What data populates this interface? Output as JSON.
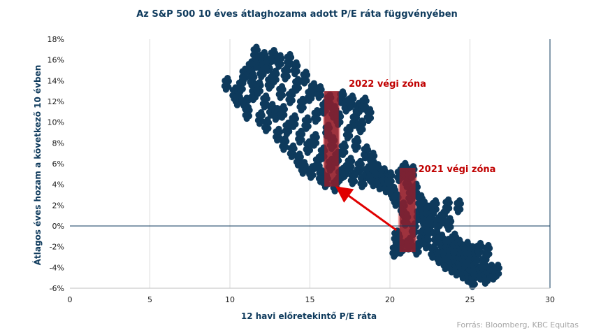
{
  "chart_data": {
    "type": "scatter",
    "title": "Az S&P 500 10 éves átlaghozama adott P/E ráta függvényében",
    "xlabel": "12 havi előretekintő P/E ráta",
    "ylabel": "Átlagos éves hozam a következő 10 évben",
    "xlim": [
      0,
      30
    ],
    "ylim": [
      -6,
      18
    ],
    "x_ticks": [
      0,
      5,
      10,
      15,
      20,
      25,
      30
    ],
    "x_tick_labels": [
      "0",
      "5",
      "10",
      "15",
      "20",
      "25",
      "30"
    ],
    "y_ticks": [
      -6,
      -4,
      -2,
      0,
      2,
      4,
      6,
      8,
      10,
      12,
      14,
      16,
      18
    ],
    "y_tick_labels": [
      "-6%",
      "-4%",
      "-2%",
      "0%",
      "2%",
      "4%",
      "6%",
      "8%",
      "10%",
      "12%",
      "14%",
      "16%",
      "18%"
    ],
    "grid": {
      "vertical": true,
      "horizontal": false
    },
    "point_color": "#0e3a5c",
    "series": [
      {
        "points": [
          [
            9.8,
            13.7
          ],
          [
            10.3,
            12.8
          ],
          [
            10.5,
            12.2
          ],
          [
            10.7,
            13.5
          ],
          [
            10.9,
            14.6
          ],
          [
            11.0,
            11.8
          ],
          [
            11.1,
            10.9
          ],
          [
            11.3,
            15.3
          ],
          [
            11.4,
            14.1
          ],
          [
            11.5,
            12.7
          ],
          [
            11.6,
            16.7
          ],
          [
            11.7,
            15.8
          ],
          [
            11.8,
            13.3
          ],
          [
            11.9,
            10.4
          ],
          [
            12.0,
            14.9
          ],
          [
            12.1,
            16.2
          ],
          [
            12.2,
            12.0
          ],
          [
            12.3,
            9.7
          ],
          [
            12.4,
            15.5
          ],
          [
            12.5,
            13.8
          ],
          [
            12.6,
            11.2
          ],
          [
            12.7,
            16.4
          ],
          [
            12.8,
            14.4
          ],
          [
            12.9,
            10.8
          ],
          [
            13.0,
            8.8
          ],
          [
            13.1,
            15.9
          ],
          [
            13.2,
            12.9
          ],
          [
            13.3,
            11.0
          ],
          [
            13.4,
            7.9
          ],
          [
            13.5,
            14.7
          ],
          [
            13.6,
            9.4
          ],
          [
            13.7,
            16.0
          ],
          [
            13.8,
            12.4
          ],
          [
            13.9,
            7.2
          ],
          [
            14.0,
            10.1
          ],
          [
            14.1,
            15.2
          ],
          [
            14.2,
            13.6
          ],
          [
            14.3,
            6.4
          ],
          [
            14.4,
            8.6
          ],
          [
            14.5,
            11.7
          ],
          [
            14.6,
            5.6
          ],
          [
            14.7,
            14.3
          ],
          [
            14.8,
            9.9
          ],
          [
            14.9,
            7.6
          ],
          [
            15.0,
            12.6
          ],
          [
            15.1,
            5.2
          ],
          [
            15.2,
            13.2
          ],
          [
            15.3,
            8.3
          ],
          [
            15.4,
            10.6
          ],
          [
            15.5,
            6.1
          ],
          [
            15.6,
            12.9
          ],
          [
            15.7,
            4.8
          ],
          [
            15.8,
            7.0
          ],
          [
            15.9,
            11.4
          ],
          [
            16.0,
            4.3
          ],
          [
            16.1,
            9.2
          ],
          [
            16.2,
            12.1
          ],
          [
            16.3,
            5.9
          ],
          [
            16.4,
            8.0
          ],
          [
            16.5,
            11.0
          ],
          [
            16.6,
            3.9
          ],
          [
            16.7,
            6.6
          ],
          [
            16.8,
            10.3
          ],
          [
            16.9,
            4.9
          ],
          [
            17.0,
            12.4
          ],
          [
            17.1,
            7.4
          ],
          [
            17.2,
            5.3
          ],
          [
            17.3,
            11.6
          ],
          [
            17.4,
            9.0
          ],
          [
            17.5,
            6.0
          ],
          [
            17.6,
            12.0
          ],
          [
            17.7,
            4.6
          ],
          [
            17.8,
            10.2
          ],
          [
            17.9,
            7.9
          ],
          [
            18.0,
            11.3
          ],
          [
            18.1,
            5.7
          ],
          [
            18.2,
            9.6
          ],
          [
            18.3,
            4.3
          ],
          [
            18.4,
            11.8
          ],
          [
            18.5,
            7.1
          ],
          [
            18.6,
            5.2
          ],
          [
            18.7,
            10.7
          ],
          [
            18.8,
            4.9
          ],
          [
            18.9,
            6.5
          ],
          [
            19.0,
            4.4
          ],
          [
            19.2,
            5.4
          ],
          [
            19.4,
            4.1
          ],
          [
            19.6,
            5.0
          ],
          [
            19.8,
            3.8
          ],
          [
            20.0,
            4.6
          ],
          [
            20.2,
            3.2
          ],
          [
            20.3,
            -2.4
          ],
          [
            20.4,
            2.5
          ],
          [
            20.5,
            -1.3
          ],
          [
            20.6,
            4.9
          ],
          [
            20.7,
            -2.1
          ],
          [
            20.8,
            1.7
          ],
          [
            20.9,
            5.5
          ],
          [
            21.0,
            0.6
          ],
          [
            21.1,
            4.3
          ],
          [
            21.2,
            -1.7
          ],
          [
            21.3,
            2.9
          ],
          [
            21.4,
            5.2
          ],
          [
            21.5,
            -0.3
          ],
          [
            21.6,
            3.5
          ],
          [
            21.7,
            -2.2
          ],
          [
            21.8,
            1.1
          ],
          [
            21.9,
            2.4
          ],
          [
            22.0,
            -0.9
          ],
          [
            22.1,
            1.8
          ],
          [
            22.2,
            0.5
          ],
          [
            22.3,
            -1.6
          ],
          [
            22.4,
            1.4
          ],
          [
            22.5,
            -0.2
          ],
          [
            22.6,
            0.9
          ],
          [
            22.7,
            -2.5
          ],
          [
            22.8,
            1.9
          ],
          [
            22.9,
            -1.1
          ],
          [
            23.0,
            0.3
          ],
          [
            23.1,
            -3.0
          ],
          [
            23.2,
            -1.4
          ],
          [
            23.3,
            0.8
          ],
          [
            23.4,
            -2.3
          ],
          [
            23.5,
            -3.6
          ],
          [
            23.6,
            -1.8
          ],
          [
            23.7,
            0.2
          ],
          [
            23.8,
            -2.7
          ],
          [
            23.9,
            -3.9
          ],
          [
            24.0,
            -1.3
          ],
          [
            24.1,
            -2.9
          ],
          [
            24.2,
            -4.2
          ],
          [
            24.3,
            -1.9
          ],
          [
            24.4,
            -3.4
          ],
          [
            24.5,
            -2.6
          ],
          [
            24.6,
            -4.5
          ],
          [
            24.7,
            -3.2
          ],
          [
            24.8,
            -2.1
          ],
          [
            24.9,
            -4.8
          ],
          [
            25.0,
            -3.7
          ],
          [
            25.1,
            -2.5
          ],
          [
            25.2,
            -5.3
          ],
          [
            25.3,
            -4.1
          ],
          [
            25.4,
            -3.0
          ],
          [
            25.6,
            -2.2
          ],
          [
            25.7,
            -4.6
          ],
          [
            25.9,
            -3.5
          ],
          [
            26.0,
            -5.0
          ],
          [
            26.1,
            -2.4
          ],
          [
            26.3,
            -4.3
          ],
          [
            26.5,
            -4.6
          ],
          [
            26.7,
            -4.3
          ],
          [
            20.4,
            -1.0
          ],
          [
            23.6,
            2.0
          ],
          [
            24.3,
            1.9
          ]
        ]
      }
    ],
    "zones": [
      {
        "label": "2022 végi zóna",
        "x_from": 15.9,
        "x_to": 16.8,
        "y_from": 3.8,
        "y_to": 13.0,
        "label_color": "#c00000"
      },
      {
        "label": "2021 végi zóna",
        "x_from": 20.6,
        "x_to": 21.6,
        "y_from": -2.5,
        "y_to": 5.6,
        "label_color": "#c00000"
      }
    ],
    "arrow": {
      "from": [
        20.4,
        -0.4
      ],
      "to": [
        16.8,
        3.6
      ],
      "color": "#e00000"
    },
    "source": "Forrás: Bloomberg, KBC Equitas"
  }
}
